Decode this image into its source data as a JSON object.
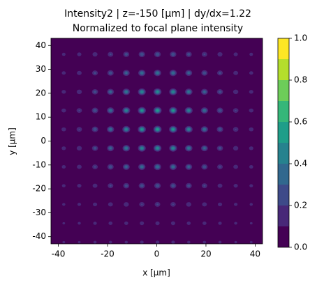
{
  "chart_data": {
    "type": "contour",
    "title": [
      "Intensity2 | z=-150 [μm] | dy/dx=1.22",
      "Normalized to focal plane intensity"
    ],
    "xlabel": "x [μm]",
    "ylabel": "y [μm]",
    "xlim": [
      -43,
      43
    ],
    "ylim": [
      -43,
      43
    ],
    "xticks": [
      -40,
      -20,
      0,
      20,
      40
    ],
    "yticks": [
      -40,
      -30,
      -20,
      -10,
      0,
      10,
      20,
      30,
      40
    ],
    "x": [
      -37.8,
      -31.5,
      -25.1,
      -18.8,
      -12.4,
      -6.05,
      0.3,
      6.65,
      13,
      19.4,
      25.7,
      32.1,
      38.4
    ],
    "y": [
      36.3,
      28.5,
      20.6,
      12.8,
      4.9,
      -3.0,
      -10.8,
      -18.7,
      -26.5,
      -34.4,
      -42.3
    ],
    "z": [
      [
        0.14,
        0.16,
        0.19,
        0.22,
        0.26,
        0.29,
        0.3,
        0.29,
        0.26,
        0.22,
        0.19,
        0.16,
        0.14
      ],
      [
        0.15,
        0.18,
        0.23,
        0.28,
        0.34,
        0.39,
        0.41,
        0.39,
        0.34,
        0.28,
        0.23,
        0.18,
        0.15
      ],
      [
        0.16,
        0.2,
        0.26,
        0.34,
        0.42,
        0.49,
        0.51,
        0.49,
        0.42,
        0.34,
        0.26,
        0.2,
        0.16
      ],
      [
        0.17,
        0.21,
        0.29,
        0.38,
        0.47,
        0.54,
        0.57,
        0.54,
        0.47,
        0.38,
        0.29,
        0.21,
        0.17
      ],
      [
        0.17,
        0.21,
        0.29,
        0.38,
        0.47,
        0.54,
        0.57,
        0.54,
        0.47,
        0.38,
        0.29,
        0.21,
        0.17
      ],
      [
        0.16,
        0.2,
        0.26,
        0.34,
        0.42,
        0.48,
        0.51,
        0.48,
        0.42,
        0.34,
        0.26,
        0.2,
        0.16
      ],
      [
        0.15,
        0.18,
        0.22,
        0.28,
        0.34,
        0.38,
        0.4,
        0.38,
        0.34,
        0.28,
        0.22,
        0.18,
        0.15
      ],
      [
        0.14,
        0.16,
        0.18,
        0.22,
        0.26,
        0.28,
        0.3,
        0.28,
        0.26,
        0.22,
        0.18,
        0.16,
        0.14
      ],
      [
        0.13,
        0.14,
        0.16,
        0.18,
        0.2,
        0.21,
        0.22,
        0.21,
        0.2,
        0.18,
        0.16,
        0.14,
        0.13
      ],
      [
        0.12,
        0.13,
        0.14,
        0.15,
        0.15,
        0.16,
        0.16,
        0.16,
        0.15,
        0.15,
        0.14,
        0.13,
        0.12
      ],
      [
        0.12,
        0.12,
        0.13,
        0.13,
        0.13,
        0.14,
        0.14,
        0.14,
        0.13,
        0.13,
        0.13,
        0.12,
        0.12
      ]
    ],
    "levels": [
      0,
      0.1,
      0.2,
      0.3,
      0.4,
      0.5,
      0.6,
      0.7,
      0.8,
      0.9,
      1.0
    ],
    "colors": [
      "#440154",
      "#482878",
      "#3e4a89",
      "#31688e",
      "#26828e",
      "#1f9e89",
      "#35b779",
      "#6dcd59",
      "#b4de2c",
      "#fde725"
    ],
    "colorbar_ticks": [
      {
        "value": 0,
        "label": "0.0"
      },
      {
        "value": 0.2,
        "label": "0.2"
      },
      {
        "value": 0.4,
        "label": "0.4"
      },
      {
        "value": 0.6,
        "label": "0.6"
      },
      {
        "value": 0.8,
        "label": "0.8"
      },
      {
        "value": 1.0,
        "label": "1.0"
      }
    ]
  }
}
